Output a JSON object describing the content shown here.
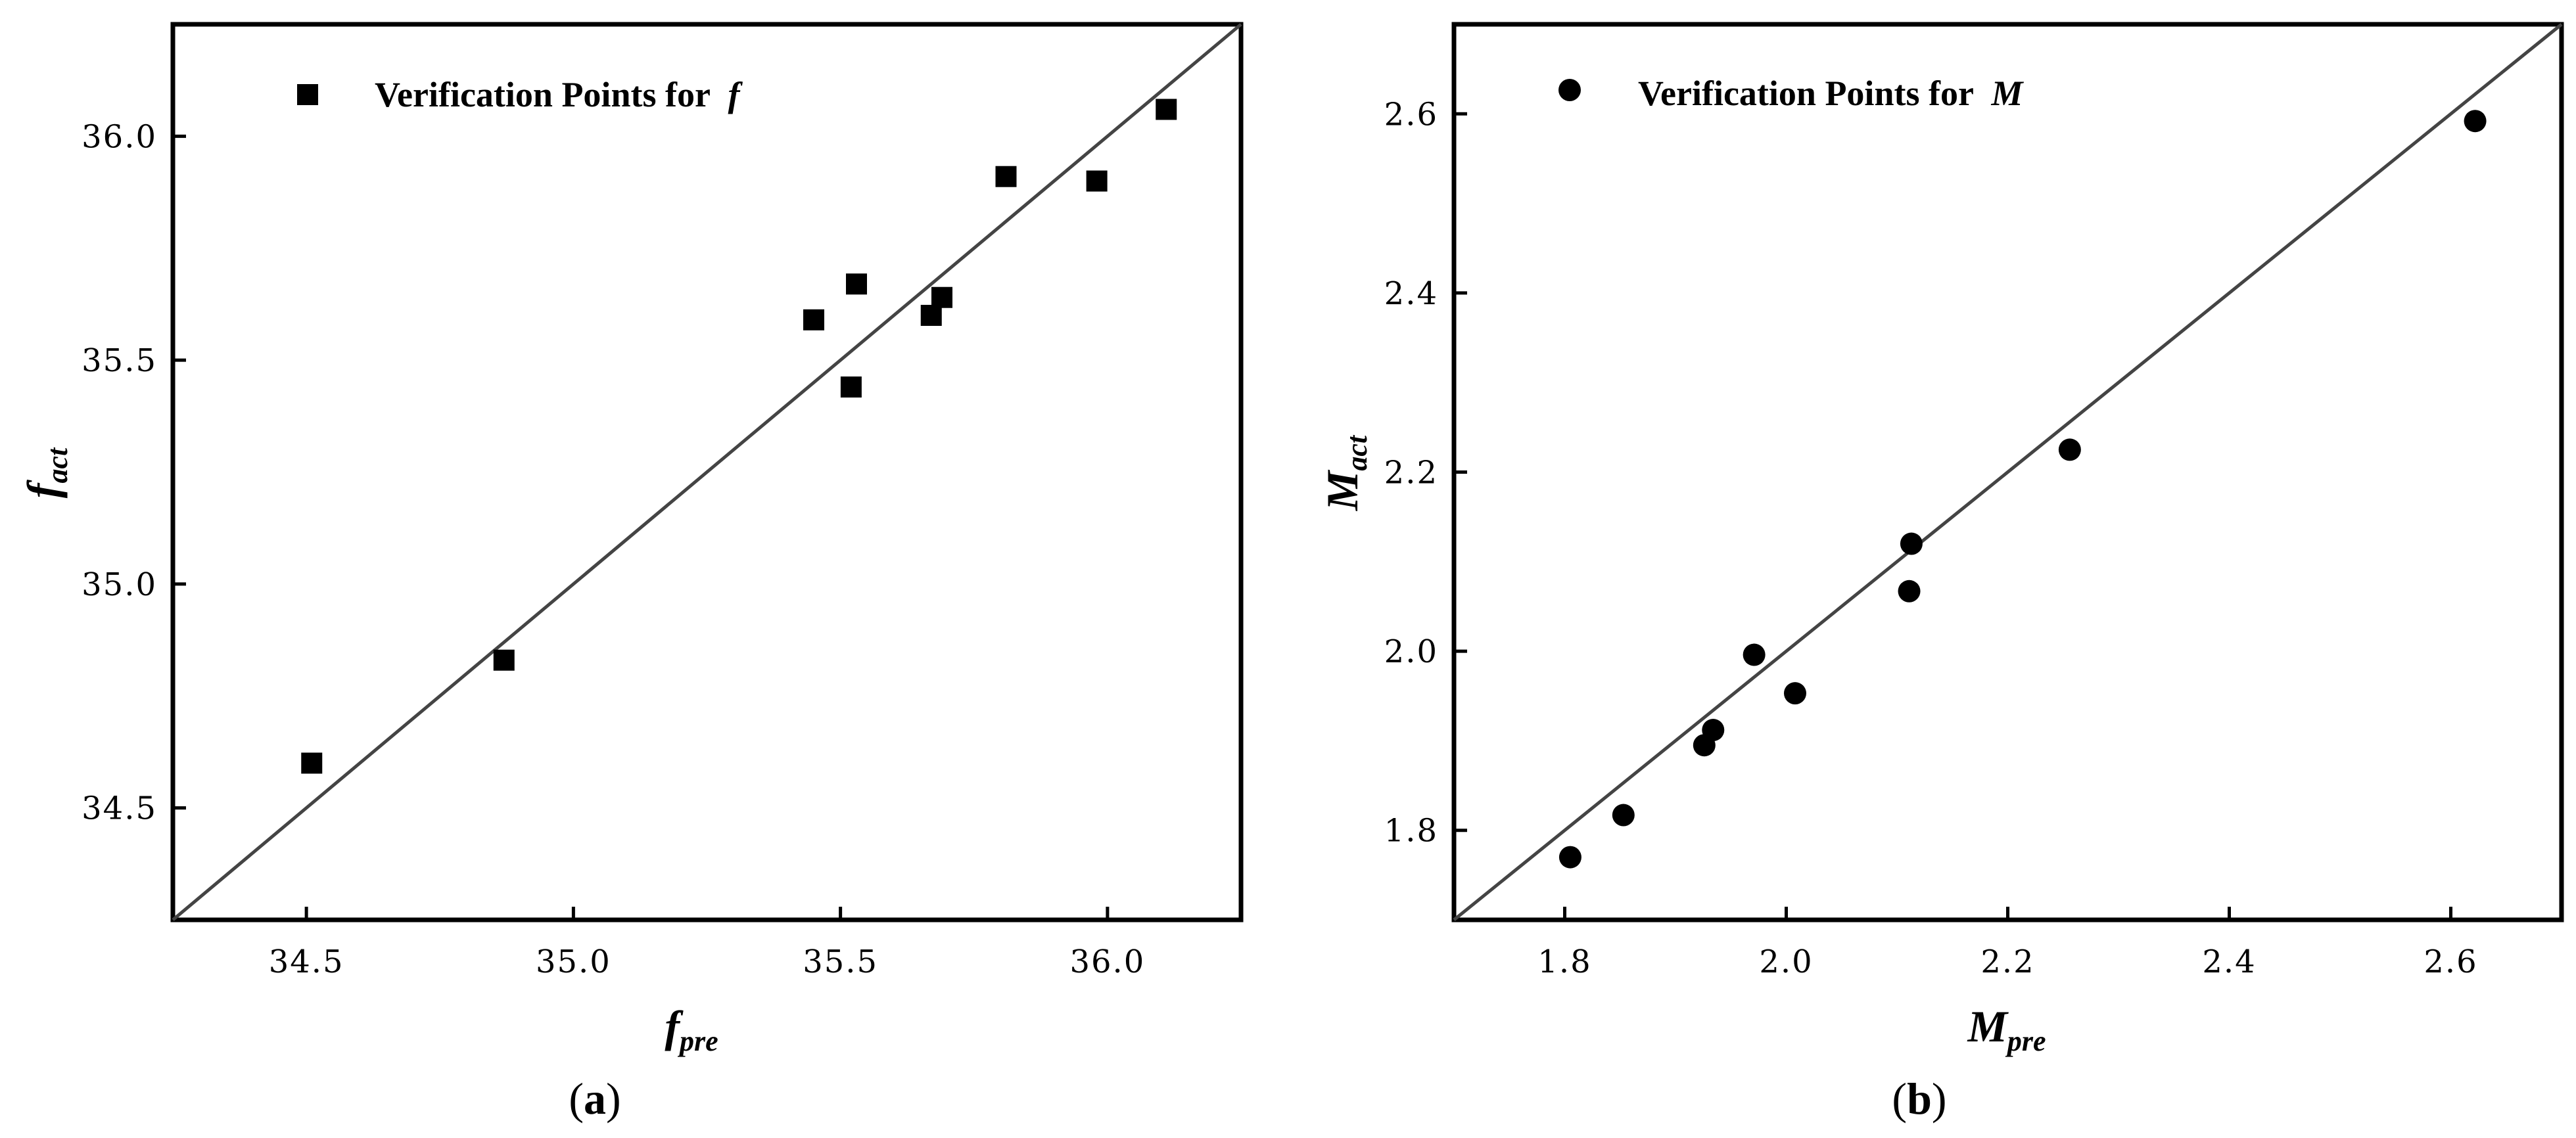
{
  "chart_data": [
    {
      "id": "a",
      "type": "scatter",
      "panel_label": "a",
      "legend": {
        "marker": "square",
        "text": "Verification Points for ",
        "symbol": "f",
        "placement": "top-left"
      },
      "xlabel": {
        "main": "f",
        "sub": "pre"
      },
      "ylabel": {
        "main": "f",
        "sub": "act"
      },
      "xlim": [
        34.25,
        36.25
      ],
      "ylim": [
        34.25,
        36.25
      ],
      "xticks": [
        34.5,
        35.0,
        35.5,
        36.0
      ],
      "xtick_labels": [
        "34.5",
        "35.0",
        "35.5",
        "36.0"
      ],
      "yticks": [
        34.5,
        35.0,
        35.5,
        36.0
      ],
      "ytick_labels": [
        "34.5",
        "35.0",
        "35.5",
        "36.0"
      ],
      "reference_line": "y = x",
      "grid": false,
      "points": [
        {
          "x": 34.51,
          "y": 34.6
        },
        {
          "x": 34.87,
          "y": 34.83
        },
        {
          "x": 35.45,
          "y": 35.59
        },
        {
          "x": 35.52,
          "y": 35.44
        },
        {
          "x": 35.53,
          "y": 35.67
        },
        {
          "x": 35.67,
          "y": 35.6
        },
        {
          "x": 35.69,
          "y": 35.64
        },
        {
          "x": 35.81,
          "y": 35.91
        },
        {
          "x": 35.98,
          "y": 35.9
        },
        {
          "x": 36.11,
          "y": 36.06
        }
      ]
    },
    {
      "id": "b",
      "type": "scatter",
      "panel_label": "b",
      "legend": {
        "marker": "circle",
        "text": "Verification Points for ",
        "symbol": "M",
        "placement": "top-left"
      },
      "xlabel": {
        "main": "M",
        "sub": "pre"
      },
      "ylabel": {
        "main": "M",
        "sub": "act"
      },
      "xlim": [
        1.7,
        2.7
      ],
      "ylim": [
        1.7,
        2.7
      ],
      "xticks": [
        1.8,
        2.0,
        2.2,
        2.4,
        2.6
      ],
      "xtick_labels": [
        "1.8",
        "2.0",
        "2.2",
        "2.4",
        "2.6"
      ],
      "yticks": [
        1.8,
        2.0,
        2.2,
        2.4,
        2.6
      ],
      "ytick_labels": [
        "1.8",
        "2.0",
        "2.2",
        "2.4",
        "2.6"
      ],
      "reference_line": "y = x",
      "grid": false,
      "points": [
        {
          "x": 1.805,
          "y": 1.77
        },
        {
          "x": 1.853,
          "y": 1.817
        },
        {
          "x": 1.926,
          "y": 1.895
        },
        {
          "x": 1.934,
          "y": 1.912
        },
        {
          "x": 1.971,
          "y": 1.996
        },
        {
          "x": 2.008,
          "y": 1.953
        },
        {
          "x": 2.111,
          "y": 2.067
        },
        {
          "x": 2.113,
          "y": 2.12
        },
        {
          "x": 2.256,
          "y": 2.225
        },
        {
          "x": 2.622,
          "y": 2.592
        }
      ]
    }
  ]
}
